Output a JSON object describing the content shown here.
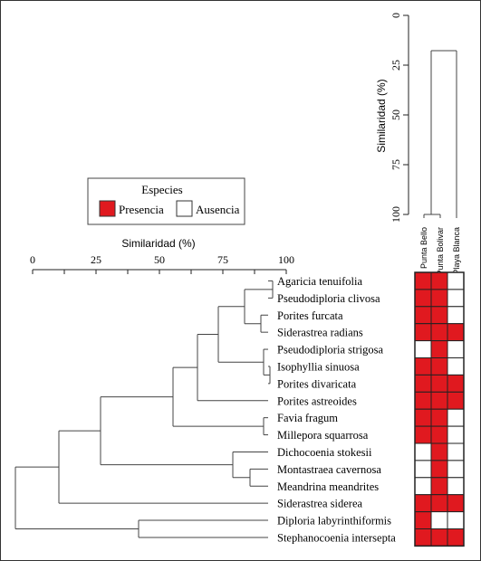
{
  "legend": {
    "title": "Especies",
    "presence_label": "Presencia",
    "absence_label": "Ausencia"
  },
  "site_dendrogram": {
    "axis_label": "Similaridad (%)",
    "ticks": [
      "0",
      "25",
      "50",
      "75",
      "100"
    ],
    "sites": [
      "Punta Bello",
      "Punta Bolivar",
      "Playa Blanca"
    ]
  },
  "species_dendrogram": {
    "axis_label": "Similaridad (%)",
    "ticks": [
      "0",
      "25",
      "50",
      "75",
      "100"
    ]
  },
  "species": [
    "Agaricia tenuifolia",
    "Pseudodiploria clivosa",
    "Porites furcata",
    "Siderastrea radians",
    "Pseudodiploria strigosa",
    "Isophyllia sinuosa",
    "Porites divaricata",
    "Porites astreoides",
    "Favia fragum",
    "Millepora squarrosa",
    "Dichocoenia stokesii",
    "Montastraea cavernosa",
    "Meandrina meandrites",
    "Siderastrea siderea",
    "Diploria labyrinthiformis",
    "Stephanocoenia intersepta"
  ],
  "presence_matrix": [
    [
      1,
      1,
      0
    ],
    [
      1,
      1,
      0
    ],
    [
      1,
      1,
      0
    ],
    [
      1,
      1,
      1
    ],
    [
      0,
      1,
      0
    ],
    [
      1,
      1,
      0
    ],
    [
      1,
      1,
      1
    ],
    [
      1,
      1,
      1
    ],
    [
      1,
      1,
      0
    ],
    [
      1,
      1,
      0
    ],
    [
      0,
      1,
      0
    ],
    [
      0,
      1,
      0
    ],
    [
      0,
      1,
      0
    ],
    [
      1,
      1,
      1
    ],
    [
      1,
      0,
      0
    ],
    [
      1,
      1,
      1
    ]
  ],
  "colors": {
    "presence": "#e0191f",
    "absence": "#ffffff",
    "line": "#444444"
  }
}
